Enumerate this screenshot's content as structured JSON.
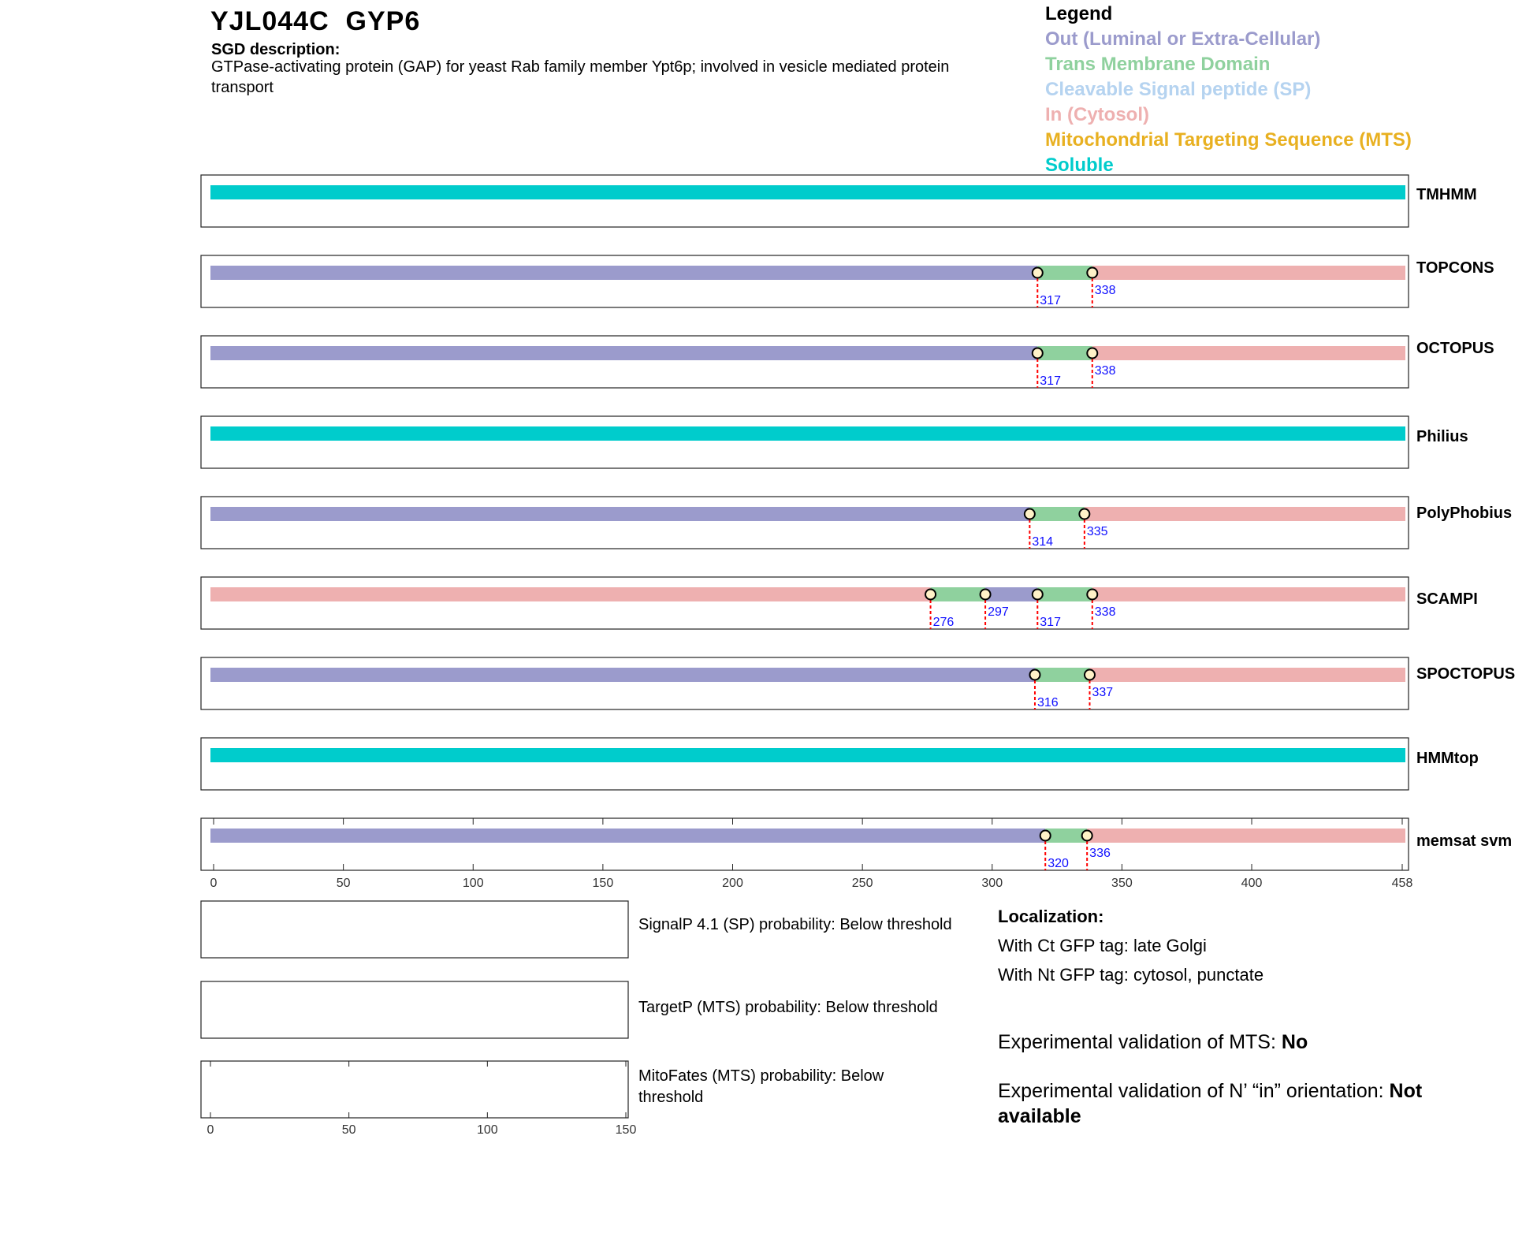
{
  "header": {
    "title": "YJL044C  GYP6",
    "sgd_label": "SGD description:",
    "sgd_description": "GTPase-activating protein (GAP) for yeast Rab family member Ypt6p; involved in vesicle mediated protein transport"
  },
  "legend": {
    "title": "Legend",
    "items": [
      {
        "label": "Out (Luminal or Extra-Cellular)",
        "color": "#9b9bcc"
      },
      {
        "label": "Trans Membrane Domain",
        "color": "#8fd19e"
      },
      {
        "label": "Cleavable Signal peptide (SP)",
        "color": "#b5d3f0"
      },
      {
        "label": "In (Cytosol)",
        "color": "#eeb0b0"
      },
      {
        "label": "Mitochondrial Targeting Sequence (MTS)",
        "color": "#e8b020"
      },
      {
        "label": "Soluble",
        "color": "#00cccc"
      }
    ]
  },
  "chart_data": {
    "type": "topology-tracks",
    "x_range": [
      0,
      458
    ],
    "x_ticks": [
      0,
      50,
      100,
      150,
      200,
      250,
      300,
      350,
      400,
      458
    ],
    "tracks": [
      {
        "name": "TMHMM",
        "segments": [
          {
            "start": 0,
            "end": 458,
            "type": "soluble"
          }
        ],
        "boundaries": []
      },
      {
        "name": "TOPCONS",
        "segments": [
          {
            "start": 0,
            "end": 317,
            "type": "out"
          },
          {
            "start": 317,
            "end": 338,
            "type": "tm"
          },
          {
            "start": 338,
            "end": 458,
            "type": "in"
          }
        ],
        "boundaries": [
          317,
          338
        ]
      },
      {
        "name": "OCTOPUS",
        "segments": [
          {
            "start": 0,
            "end": 317,
            "type": "out"
          },
          {
            "start": 317,
            "end": 338,
            "type": "tm"
          },
          {
            "start": 338,
            "end": 458,
            "type": "in"
          }
        ],
        "boundaries": [
          317,
          338
        ]
      },
      {
        "name": "Philius",
        "segments": [
          {
            "start": 0,
            "end": 458,
            "type": "soluble"
          }
        ],
        "boundaries": []
      },
      {
        "name": "PolyPhobius",
        "segments": [
          {
            "start": 0,
            "end": 314,
            "type": "out"
          },
          {
            "start": 314,
            "end": 335,
            "type": "tm"
          },
          {
            "start": 335,
            "end": 458,
            "type": "in"
          }
        ],
        "boundaries": [
          314,
          335
        ]
      },
      {
        "name": "SCAMPI",
        "segments": [
          {
            "start": 0,
            "end": 276,
            "type": "in"
          },
          {
            "start": 276,
            "end": 297,
            "type": "tm"
          },
          {
            "start": 297,
            "end": 317,
            "type": "out"
          },
          {
            "start": 317,
            "end": 338,
            "type": "tm"
          },
          {
            "start": 338,
            "end": 458,
            "type": "in"
          }
        ],
        "boundaries": [
          276,
          297,
          317,
          338
        ]
      },
      {
        "name": "SPOCTOPUS",
        "segments": [
          {
            "start": 0,
            "end": 316,
            "type": "out"
          },
          {
            "start": 316,
            "end": 337,
            "type": "tm"
          },
          {
            "start": 337,
            "end": 458,
            "type": "in"
          }
        ],
        "boundaries": [
          316,
          337
        ]
      },
      {
        "name": "HMMtop",
        "segments": [
          {
            "start": 0,
            "end": 458,
            "type": "soluble"
          }
        ],
        "boundaries": []
      },
      {
        "name": "memsat svm",
        "segments": [
          {
            "start": 0,
            "end": 320,
            "type": "out"
          },
          {
            "start": 320,
            "end": 336,
            "type": "tm"
          },
          {
            "start": 336,
            "end": 458,
            "type": "in"
          }
        ],
        "boundaries": [
          320,
          336
        ]
      }
    ],
    "segment_colors": {
      "out": "#9b9bcc",
      "tm": "#8fd19e",
      "in": "#eeb0b0",
      "soluble": "#00cccc"
    },
    "probability_x_range": [
      0,
      150
    ],
    "probability_x_ticks": [
      0,
      50,
      100,
      150
    ],
    "probability_panels": [
      {
        "label": "SignalP 4.1 (SP) probability: Below threshold"
      },
      {
        "label": "TargetP (MTS) probability: Below threshold"
      },
      {
        "label": "MitoFates (MTS) probability: Below threshold"
      }
    ]
  },
  "localization": {
    "title": "Localization:",
    "ct": "With Ct GFP tag: late Golgi",
    "nt": "With Nt GFP tag: cytosol, punctate"
  },
  "validation": {
    "mts_label": "Experimental validation of MTS: ",
    "mts_value": "No",
    "orient_label": "Experimental validation of N’ “in” orientation: ",
    "orient_value": "Not available"
  }
}
